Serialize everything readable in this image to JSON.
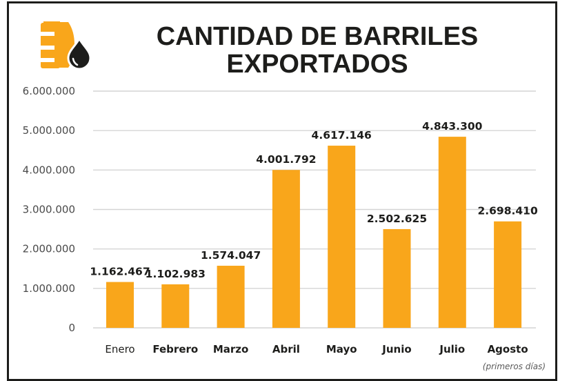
{
  "chart_data": {
    "type": "bar",
    "title_lines": [
      "CANTIDAD DE BARRILES",
      "EXPORTADOS"
    ],
    "categories": [
      "Enero",
      "Febrero",
      "Marzo",
      "Abril",
      "Mayo",
      "Junio",
      "Julio",
      "Agosto"
    ],
    "values": [
      1162467,
      1102983,
      1574047,
      4001792,
      4617146,
      2502625,
      4843300,
      2698410
    ],
    "value_labels": [
      "1.162.467",
      "1.102.983",
      "1.574.047",
      "4.001.792",
      "4.617.146",
      "2.502.625",
      "4.843.300",
      "2.698.410"
    ],
    "y_ticks": [
      0,
      1000000,
      2000000,
      3000000,
      4000000,
      5000000,
      6000000
    ],
    "y_tick_labels": [
      "0",
      "1.000.000",
      "2.000.000",
      "3.000.000",
      "4.000.000",
      "5.000.000",
      "6.000.000"
    ],
    "ylim": [
      0,
      6000000
    ],
    "grid": true,
    "xlabel": "",
    "ylabel": "",
    "note": "(primeros días)",
    "bar_color": "#f9a61b",
    "grid_color": "#d4d4d4",
    "icon": "oil-barrel-icon"
  }
}
